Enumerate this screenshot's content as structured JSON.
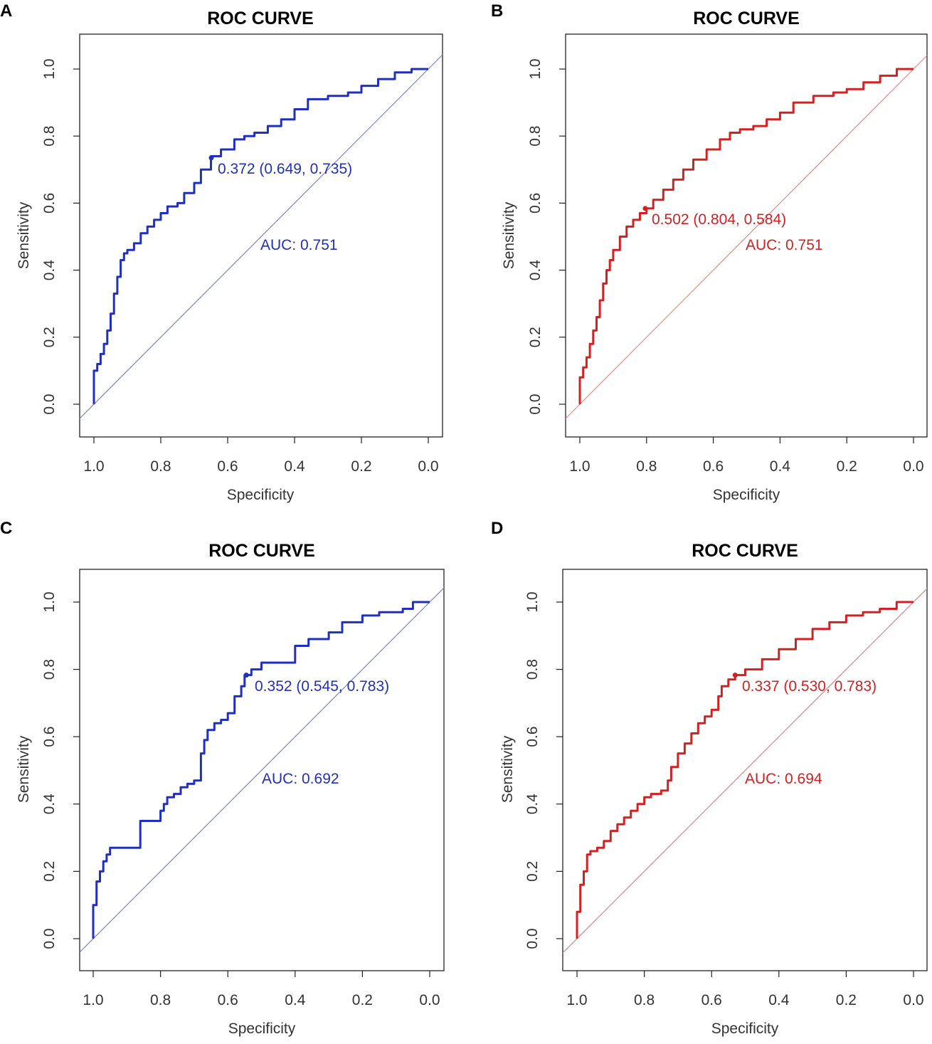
{
  "chart_data": [
    {
      "panel": "A",
      "type": "line",
      "title": "ROC CURVE",
      "xlabel": "Specificity",
      "ylabel": "Sensitivity",
      "xlim": [
        1.0,
        0.0
      ],
      "ylim": [
        0.0,
        1.0
      ],
      "xticks": [
        "1.0",
        "0.8",
        "0.6",
        "0.4",
        "0.2",
        "0.0"
      ],
      "yticks": [
        "0.0",
        "0.2",
        "0.4",
        "0.6",
        "0.8",
        "1.0"
      ],
      "color": "#1f2fbf",
      "diag_color": "#7d86c4",
      "threshold_label": "0.372 (0.649, 0.735)",
      "threshold_point": [
        0.649,
        0.735
      ],
      "auc_label": "AUC: 0.751",
      "series": [
        {
          "name": "ROC",
          "x": [
            1.0,
            1.0,
            0.99,
            0.98,
            0.97,
            0.96,
            0.95,
            0.94,
            0.93,
            0.92,
            0.91,
            0.9,
            0.88,
            0.86,
            0.84,
            0.82,
            0.8,
            0.78,
            0.75,
            0.73,
            0.7,
            0.68,
            0.65,
            0.62,
            0.58,
            0.55,
            0.52,
            0.48,
            0.44,
            0.4,
            0.36,
            0.3,
            0.24,
            0.2,
            0.15,
            0.1,
            0.05,
            0.0
          ],
          "y": [
            0.0,
            0.1,
            0.12,
            0.15,
            0.18,
            0.22,
            0.27,
            0.33,
            0.38,
            0.43,
            0.45,
            0.46,
            0.48,
            0.51,
            0.53,
            0.55,
            0.57,
            0.59,
            0.6,
            0.63,
            0.66,
            0.7,
            0.74,
            0.76,
            0.79,
            0.8,
            0.81,
            0.83,
            0.85,
            0.88,
            0.91,
            0.92,
            0.93,
            0.95,
            0.97,
            0.99,
            1.0,
            1.0
          ]
        }
      ]
    },
    {
      "panel": "B",
      "type": "line",
      "title": "ROC CURVE",
      "xlabel": "Specificity",
      "ylabel": "Sensitivity",
      "xlim": [
        1.0,
        0.0
      ],
      "ylim": [
        0.0,
        1.0
      ],
      "xticks": [
        "1.0",
        "0.8",
        "0.6",
        "0.4",
        "0.2",
        "0.0"
      ],
      "yticks": [
        "0.0",
        "0.2",
        "0.4",
        "0.6",
        "0.8",
        "1.0"
      ],
      "color": "#d42020",
      "diag_color": "#e38a8a",
      "threshold_label": "0.502 (0.804, 0.584)",
      "threshold_point": [
        0.804,
        0.584
      ],
      "auc_label": "AUC: 0.751",
      "series": [
        {
          "name": "ROC",
          "x": [
            1.0,
            1.0,
            0.99,
            0.98,
            0.97,
            0.96,
            0.95,
            0.94,
            0.93,
            0.92,
            0.91,
            0.9,
            0.88,
            0.86,
            0.84,
            0.82,
            0.8,
            0.78,
            0.75,
            0.72,
            0.69,
            0.66,
            0.62,
            0.58,
            0.55,
            0.52,
            0.48,
            0.44,
            0.4,
            0.36,
            0.3,
            0.24,
            0.2,
            0.15,
            0.1,
            0.05,
            0.0
          ],
          "y": [
            0.0,
            0.08,
            0.11,
            0.14,
            0.18,
            0.22,
            0.26,
            0.31,
            0.36,
            0.4,
            0.43,
            0.46,
            0.5,
            0.53,
            0.55,
            0.57,
            0.584,
            0.61,
            0.64,
            0.67,
            0.7,
            0.73,
            0.76,
            0.79,
            0.81,
            0.82,
            0.83,
            0.85,
            0.87,
            0.9,
            0.92,
            0.93,
            0.94,
            0.96,
            0.98,
            1.0,
            1.0
          ]
        }
      ]
    },
    {
      "panel": "C",
      "type": "line",
      "title": "ROC CURVE",
      "xlabel": "Specificity",
      "ylabel": "Sensitivity",
      "xlim": [
        1.0,
        0.0
      ],
      "ylim": [
        0.0,
        1.0
      ],
      "xticks": [
        "1.0",
        "0.8",
        "0.6",
        "0.4",
        "0.2",
        "0.0"
      ],
      "yticks": [
        "0.0",
        "0.2",
        "0.4",
        "0.6",
        "0.8",
        "1.0"
      ],
      "color": "#1f2fbf",
      "diag_color": "#7d86c4",
      "threshold_label": "0.352 (0.545, 0.783)",
      "threshold_point": [
        0.545,
        0.783
      ],
      "auc_label": "AUC: 0.692",
      "series": [
        {
          "name": "ROC",
          "x": [
            1.0,
            1.0,
            0.99,
            0.98,
            0.97,
            0.96,
            0.95,
            0.92,
            0.88,
            0.86,
            0.86,
            0.83,
            0.8,
            0.79,
            0.78,
            0.76,
            0.74,
            0.72,
            0.7,
            0.68,
            0.68,
            0.67,
            0.66,
            0.64,
            0.62,
            0.6,
            0.58,
            0.56,
            0.55,
            0.53,
            0.5,
            0.46,
            0.42,
            0.4,
            0.36,
            0.3,
            0.26,
            0.2,
            0.15,
            0.08,
            0.05,
            0.0
          ],
          "y": [
            0.0,
            0.1,
            0.17,
            0.2,
            0.23,
            0.25,
            0.27,
            0.27,
            0.27,
            0.3,
            0.35,
            0.35,
            0.38,
            0.4,
            0.42,
            0.43,
            0.45,
            0.46,
            0.47,
            0.47,
            0.55,
            0.59,
            0.62,
            0.64,
            0.65,
            0.67,
            0.72,
            0.75,
            0.783,
            0.8,
            0.82,
            0.82,
            0.82,
            0.87,
            0.89,
            0.91,
            0.94,
            0.96,
            0.97,
            0.98,
            1.0,
            1.0
          ]
        }
      ]
    },
    {
      "panel": "D",
      "type": "line",
      "title": "ROC CURVE",
      "xlabel": "Specificity",
      "ylabel": "Sensitivity",
      "xlim": [
        1.0,
        0.0
      ],
      "ylim": [
        0.0,
        1.0
      ],
      "xticks": [
        "1.0",
        "0.8",
        "0.6",
        "0.4",
        "0.2",
        "0.0"
      ],
      "yticks": [
        "0.0",
        "0.2",
        "0.4",
        "0.6",
        "0.8",
        "1.0"
      ],
      "color": "#d42020",
      "diag_color": "#d48a8a",
      "threshold_label": "0.337 (0.530, 0.783)",
      "threshold_point": [
        0.53,
        0.783
      ],
      "auc_label": "AUC: 0.694",
      "series": [
        {
          "name": "ROC",
          "x": [
            1.0,
            1.0,
            0.99,
            0.98,
            0.97,
            0.96,
            0.94,
            0.92,
            0.9,
            0.88,
            0.86,
            0.84,
            0.82,
            0.8,
            0.78,
            0.75,
            0.73,
            0.72,
            0.7,
            0.68,
            0.66,
            0.64,
            0.62,
            0.6,
            0.58,
            0.57,
            0.55,
            0.53,
            0.5,
            0.45,
            0.4,
            0.35,
            0.3,
            0.25,
            0.2,
            0.15,
            0.1,
            0.05,
            0.0
          ],
          "y": [
            0.0,
            0.08,
            0.16,
            0.2,
            0.25,
            0.26,
            0.27,
            0.29,
            0.32,
            0.34,
            0.36,
            0.38,
            0.4,
            0.42,
            0.43,
            0.44,
            0.47,
            0.51,
            0.55,
            0.58,
            0.61,
            0.64,
            0.66,
            0.68,
            0.72,
            0.75,
            0.77,
            0.783,
            0.8,
            0.83,
            0.86,
            0.89,
            0.92,
            0.94,
            0.96,
            0.97,
            0.98,
            1.0,
            1.0
          ]
        }
      ]
    }
  ]
}
